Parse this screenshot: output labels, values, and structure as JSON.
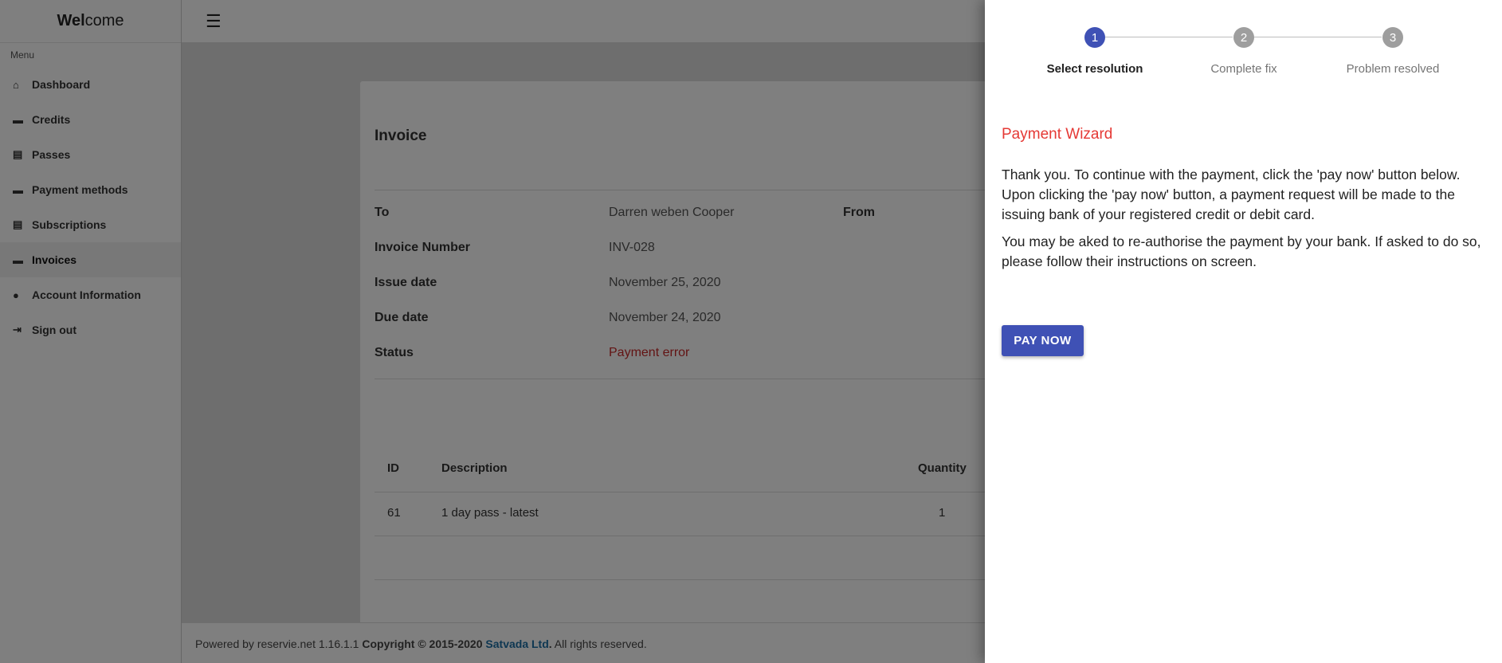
{
  "brand": {
    "bold": "Wel",
    "rest": "come"
  },
  "sidebar": {
    "menu_label": "Menu",
    "items": [
      {
        "label": "Dashboard",
        "icon": "home-icon"
      },
      {
        "label": "Credits",
        "icon": "credit-card-icon"
      },
      {
        "label": "Passes",
        "icon": "id-card-icon"
      },
      {
        "label": "Payment methods",
        "icon": "credit-card-icon"
      },
      {
        "label": "Subscriptions",
        "icon": "id-card-icon"
      },
      {
        "label": "Invoices",
        "icon": "credit-card-icon",
        "active": true
      },
      {
        "label": "Account Information",
        "icon": "user-icon"
      },
      {
        "label": "Sign out",
        "icon": "sign-out-icon"
      }
    ]
  },
  "invoice": {
    "title": "Invoice",
    "from_label": "From",
    "fields": [
      {
        "label": "To",
        "value": "Darren weben Cooper"
      },
      {
        "label": "Invoice Number",
        "value": "INV-028"
      },
      {
        "label": "Issue date",
        "value": "November 25, 2020"
      },
      {
        "label": "Due date",
        "value": "November 24, 2020"
      },
      {
        "label": "Status",
        "value": "Payment error"
      }
    ],
    "table": {
      "headers": [
        "ID",
        "Description",
        "Quantity"
      ],
      "rows": [
        [
          "61",
          "1 day pass - latest",
          "1"
        ]
      ]
    }
  },
  "footer": {
    "powered": "Powered by reservie.net 1.16.1.1",
    "copyright": "Copyright © 2015-2020",
    "company": "Satvada Ltd",
    "period": ".",
    "rights": "All rights reserved."
  },
  "wizard": {
    "steps": [
      {
        "num": "1",
        "label": "Select resolution",
        "active": true
      },
      {
        "num": "2",
        "label": "Complete fix"
      },
      {
        "num": "3",
        "label": "Problem resolved"
      }
    ],
    "title": "Payment Wizard",
    "para1": "Thank you. To continue with the payment, click the 'pay now' button below. Upon clicking the 'pay now' button, a payment request will be made to the issuing bank of your registered credit or debit card.",
    "para2": "You may be aked to re-authorise the payment by your bank. If asked to do so, please follow their instructions on screen.",
    "pay_button": "PAY NOW"
  },
  "colors": {
    "accent": "#3f51b5",
    "error": "#c62828",
    "wizard_title": "#e53935",
    "link": "#1c6ea4"
  }
}
